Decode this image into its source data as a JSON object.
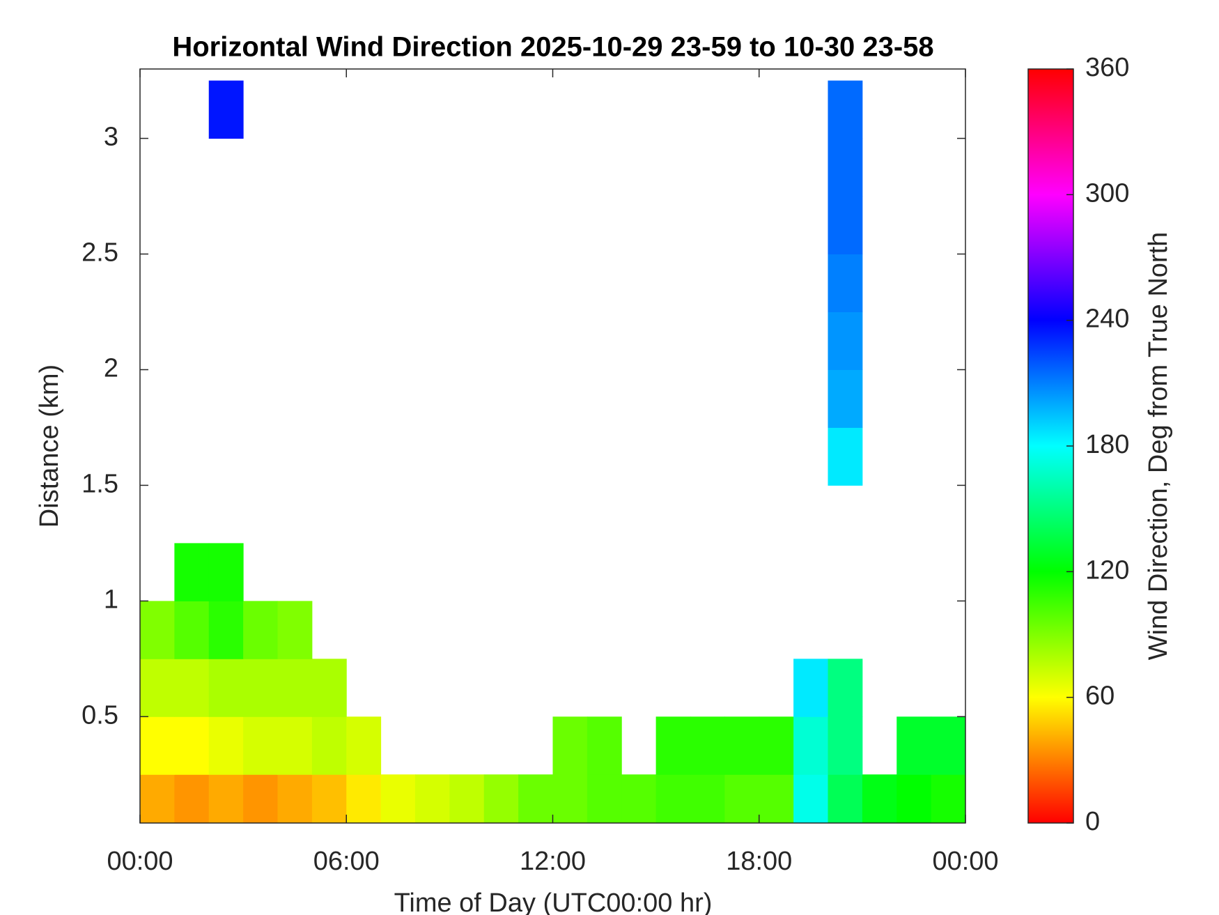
{
  "chart_data": {
    "type": "heatmap",
    "title": "Horizontal Wind Direction 2025-10-29 23-59 to 10-30 23-58",
    "x_label": "Time of Day (UTC00:00 hr)",
    "y_label": "Distance (km)",
    "xlim": [
      0,
      24
    ],
    "xticks": [
      {
        "value": 0,
        "label": "00:00"
      },
      {
        "value": 6,
        "label": "06:00"
      },
      {
        "value": 12,
        "label": "12:00"
      },
      {
        "value": 18,
        "label": "18:00"
      },
      {
        "value": 24,
        "label": "00:00"
      }
    ],
    "ylim": [
      0.04,
      3.3
    ],
    "yticks": [
      0.5,
      1,
      1.5,
      2,
      2.5,
      3
    ],
    "x": [
      0.5,
      1.5,
      2.5,
      3.5,
      4.5,
      5.5,
      6.5,
      7.5,
      8.5,
      9.5,
      10.5,
      11.5,
      12.5,
      13.5,
      14.5,
      15.5,
      16.5,
      17.5,
      18.5,
      19.5,
      20.5,
      21.5,
      22.5,
      23.5
    ],
    "y": [
      0.125,
      0.375,
      0.625,
      0.875,
      1.125,
      1.375,
      1.625,
      1.875,
      2.125,
      2.375,
      2.625,
      2.875,
      3.125
    ],
    "z": [
      [
        40,
        35,
        40,
        35,
        40,
        45,
        55,
        65,
        70,
        75,
        85,
        95,
        95,
        100,
        100,
        105,
        105,
        100,
        100,
        175,
        140,
        125,
        120,
        115
      ],
      [
        60,
        60,
        65,
        70,
        70,
        75,
        70,
        null,
        null,
        null,
        null,
        null,
        95,
        100,
        null,
        110,
        110,
        110,
        110,
        170,
        150,
        null,
        130,
        130
      ],
      [
        75,
        75,
        80,
        80,
        80,
        80,
        null,
        null,
        null,
        null,
        null,
        null,
        null,
        null,
        null,
        null,
        null,
        null,
        null,
        185,
        150,
        null,
        null,
        null
      ],
      [
        90,
        100,
        110,
        95,
        90,
        null,
        null,
        null,
        null,
        null,
        null,
        null,
        null,
        null,
        null,
        null,
        null,
        null,
        null,
        null,
        null,
        null,
        null,
        null
      ],
      [
        null,
        115,
        115,
        null,
        null,
        null,
        null,
        null,
        null,
        null,
        null,
        null,
        null,
        null,
        null,
        null,
        null,
        null,
        null,
        null,
        null,
        null,
        null,
        null
      ],
      [
        null,
        null,
        null,
        null,
        null,
        null,
        null,
        null,
        null,
        null,
        null,
        null,
        null,
        null,
        null,
        null,
        null,
        null,
        null,
        null,
        null,
        null,
        null,
        null
      ],
      [
        null,
        null,
        null,
        null,
        null,
        null,
        null,
        null,
        null,
        null,
        null,
        null,
        null,
        null,
        null,
        null,
        null,
        null,
        null,
        null,
        185,
        null,
        null,
        null
      ],
      [
        null,
        null,
        null,
        null,
        null,
        null,
        null,
        null,
        null,
        null,
        null,
        null,
        null,
        null,
        null,
        null,
        null,
        null,
        null,
        null,
        200,
        null,
        null,
        null
      ],
      [
        null,
        null,
        null,
        null,
        null,
        null,
        null,
        null,
        null,
        null,
        null,
        null,
        null,
        null,
        null,
        null,
        null,
        null,
        null,
        null,
        205,
        null,
        null,
        null
      ],
      [
        null,
        null,
        null,
        null,
        null,
        null,
        null,
        null,
        null,
        null,
        null,
        null,
        null,
        null,
        null,
        null,
        null,
        null,
        null,
        null,
        210,
        null,
        null,
        null
      ],
      [
        null,
        null,
        null,
        null,
        null,
        null,
        null,
        null,
        null,
        null,
        null,
        null,
        null,
        null,
        null,
        null,
        null,
        null,
        null,
        null,
        215,
        null,
        null,
        null
      ],
      [
        null,
        null,
        null,
        null,
        null,
        null,
        null,
        null,
        null,
        null,
        null,
        null,
        null,
        null,
        null,
        null,
        null,
        null,
        null,
        null,
        215,
        null,
        null,
        null
      ],
      [
        null,
        null,
        235,
        null,
        null,
        null,
        null,
        null,
        null,
        null,
        null,
        null,
        null,
        null,
        null,
        null,
        null,
        null,
        null,
        null,
        215,
        null,
        null,
        null
      ]
    ],
    "colorbar": {
      "label": "Wind Direction, Deg from True North",
      "lim": [
        0,
        360
      ],
      "ticks": [
        0,
        60,
        120,
        180,
        240,
        300,
        360
      ]
    }
  }
}
